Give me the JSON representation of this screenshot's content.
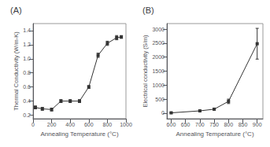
{
  "chart_data": [
    {
      "type": "line",
      "title": "(A)",
      "xlabel": "Annealing Temperature (°C)",
      "ylabel": "Thermal Conductivity (W/m-K)",
      "x": [
        25,
        100,
        200,
        300,
        400,
        500,
        600,
        700,
        800,
        900,
        950
      ],
      "values": [
        0.31,
        0.29,
        0.28,
        0.4,
        0.4,
        0.4,
        0.6,
        1.05,
        1.22,
        1.3,
        1.31
      ],
      "yerr": [
        0.02,
        0.02,
        0.02,
        0.02,
        0.02,
        0.02,
        0.02,
        0.03,
        0.03,
        0.03,
        0.02
      ],
      "xlim": [
        0,
        1000
      ],
      "xticks": [
        0,
        200,
        400,
        600,
        800,
        1000
      ],
      "ylim": [
        0.15,
        1.5
      ],
      "yticks": [
        0.2,
        0.4,
        0.6,
        0.8,
        {
          "value": 1.0,
          "label": "1.0"
        },
        1.2,
        1.4
      ],
      "color": "#333333",
      "marker": "square",
      "grid": false
    },
    {
      "type": "line",
      "title": "(B)",
      "xlabel": "Annealing Temperature (°C)",
      "ylabel": "Electrical conductivity (S/m)",
      "x": [
        600,
        700,
        750,
        800,
        900
      ],
      "values": [
        10,
        80,
        140,
        420,
        2480
      ],
      "yerr": [
        10,
        20,
        30,
        80,
        550
      ],
      "xlim": [
        585,
        920
      ],
      "xticks": [
        600,
        650,
        700,
        750,
        800,
        850,
        900
      ],
      "ylim": [
        -200,
        3200
      ],
      "yticks": [
        0,
        500,
        1000,
        1500,
        2000,
        2500,
        3000
      ],
      "color": "#333333",
      "marker": "square",
      "grid": false
    }
  ]
}
